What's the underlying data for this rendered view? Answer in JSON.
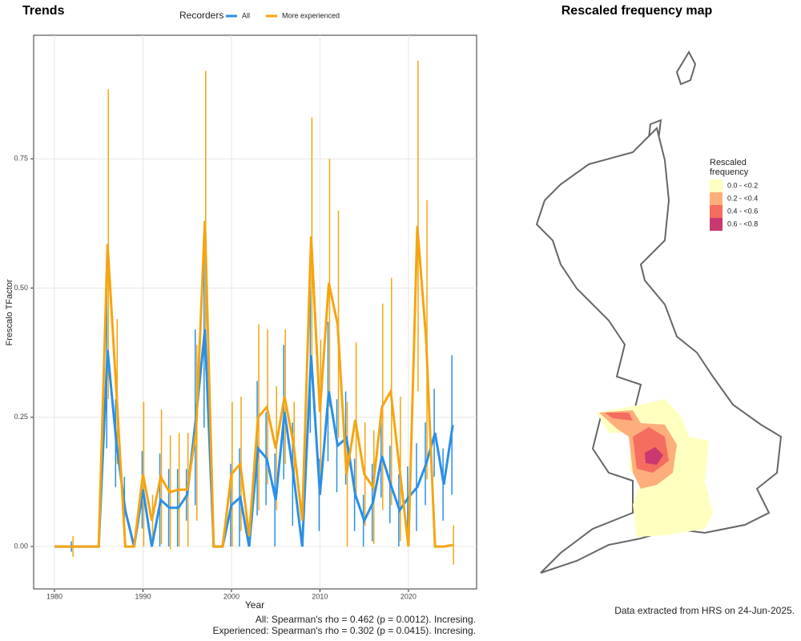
{
  "chart_data": [
    {
      "type": "line",
      "title": "Trends",
      "legend_title": "Recorders",
      "xlabel": "Year",
      "ylabel": "Frescalo TFactor",
      "x": [
        1980,
        1981,
        1982,
        1983,
        1984,
        1985,
        1986,
        1987,
        1988,
        1989,
        1990,
        1991,
        1992,
        1993,
        1994,
        1995,
        1996,
        1997,
        1998,
        1999,
        2000,
        2001,
        2002,
        2003,
        2004,
        2005,
        2006,
        2007,
        2008,
        2009,
        2010,
        2011,
        2012,
        2013,
        2014,
        2015,
        2016,
        2017,
        2018,
        2019,
        2020,
        2021,
        2022,
        2023,
        2024,
        2025
      ],
      "series": [
        {
          "name": "All",
          "color": "#2b8fe6",
          "values": [
            0,
            0,
            0,
            0,
            0,
            0,
            0.38,
            0.2,
            0.07,
            0,
            0.11,
            0,
            0.09,
            0.075,
            0.075,
            0.1,
            0.25,
            0.42,
            0,
            0,
            0.08,
            0.095,
            0,
            0.19,
            0.17,
            0.09,
            0.26,
            0.14,
            0,
            0.37,
            0.1,
            0.3,
            0.195,
            0.21,
            0.1,
            0.05,
            0.085,
            0.175,
            0.12,
            0.07,
            0.095,
            0.115,
            0.16,
            0.22,
            0.12,
            0.235
          ],
          "errors": [
            0,
            0,
            0.01,
            0,
            0,
            0,
            0.19,
            0.085,
            0.065,
            0,
            0.075,
            0,
            0.09,
            0.075,
            0.075,
            0.05,
            0.17,
            0.19,
            0,
            0,
            0.08,
            0.095,
            0,
            0.13,
            0.09,
            0.09,
            0.13,
            0.1,
            0,
            0.15,
            0.07,
            0.135,
            0.09,
            0.09,
            0.07,
            0.05,
            0.075,
            0.08,
            0.075,
            0.07,
            0.06,
            0.085,
            0.08,
            0.085,
            0.07,
            0.135
          ]
        },
        {
          "name": "More experienced",
          "color": "#f5a511",
          "values": [
            0,
            0,
            0,
            0,
            0,
            0,
            0.585,
            0.3,
            0,
            0,
            0.14,
            0.05,
            0.135,
            0.105,
            0.11,
            0.11,
            0.22,
            0.63,
            0,
            0,
            0.14,
            0.16,
            0.02,
            0.25,
            0.27,
            0.19,
            0.29,
            0.2,
            0.05,
            0.6,
            0.26,
            0.51,
            0.43,
            0.14,
            0.245,
            0.14,
            0.115,
            0.27,
            0.3,
            0.15,
            0,
            0.62,
            0.4,
            0,
            0,
            0.003
          ],
          "errors": [
            0,
            0,
            0.02,
            0,
            0,
            0,
            0.3,
            0.14,
            0,
            0,
            0.14,
            0.05,
            0.13,
            0.11,
            0.11,
            0.11,
            0.17,
            0.29,
            0,
            0,
            0.14,
            0.13,
            0.02,
            0.18,
            0.15,
            0.12,
            0.13,
            0.08,
            0.05,
            0.23,
            0.14,
            0.24,
            0.22,
            0.14,
            0.15,
            0.1,
            0.11,
            0.2,
            0.22,
            0.14,
            0,
            0.32,
            0.27,
            0,
            0,
            0.038
          ]
        }
      ],
      "xlim": [
        1977.65,
        2027.7
      ],
      "xticks": [
        1980,
        1990,
        2000,
        2010,
        2020
      ],
      "ylim": [
        -0.082,
        0.989
      ],
      "yticks": [
        {
          "value": 0,
          "label": "0.00"
        },
        {
          "value": 0.25,
          "label": "0.25"
        },
        {
          "value": 0.5,
          "label": "0.50"
        },
        {
          "value": 0.75,
          "label": "0.75"
        }
      ],
      "grid": true,
      "annotations": [
        "All: Spearman's rho = 0.462 (p = 0.0012). Incresing.",
        "Experienced: Spearman's rho = 0.302 (p = 0.0415). Incresing."
      ]
    },
    {
      "type": "map",
      "title": "Rescaled frequency map",
      "legend_title": [
        "Rescaled",
        "frequency"
      ],
      "categories": [
        "0.0 - <0.2",
        "0.2 - <0.4",
        "0.4 - <0.6",
        "0.6 - <0.8"
      ],
      "colors": [
        "#ffffc0",
        "#fdae7b",
        "#f46d5e",
        "#c9386f"
      ],
      "note": "Data extracted from HRS on 24-Jun-2025."
    }
  ]
}
